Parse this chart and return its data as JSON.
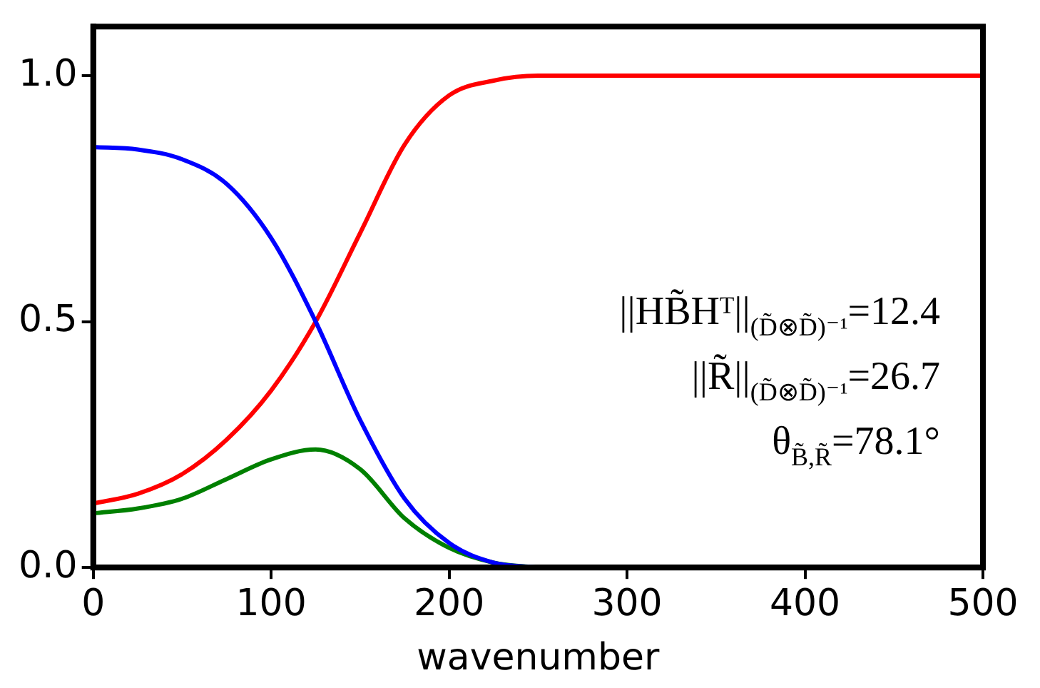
{
  "chart_data": {
    "type": "line",
    "xlabel": "wavenumber",
    "x": [
      0,
      25,
      50,
      75,
      100,
      125,
      150,
      175,
      200,
      225,
      250,
      300,
      400,
      500
    ],
    "series": [
      {
        "color": "#0000ff",
        "values": [
          0.855,
          0.85,
          0.83,
          0.78,
          0.67,
          0.5,
          0.3,
          0.14,
          0.05,
          0.01,
          0,
          null,
          null,
          null
        ]
      },
      {
        "color": "#ff0000",
        "values": [
          0.13,
          0.15,
          0.19,
          0.26,
          0.36,
          0.5,
          0.68,
          0.86,
          0.96,
          0.99,
          1.0,
          1.0,
          1.0,
          1.0
        ]
      },
      {
        "color": "#008000",
        "values": [
          0.11,
          0.12,
          0.14,
          0.18,
          0.22,
          0.24,
          0.2,
          0.1,
          0.04,
          0.01,
          0,
          null,
          null,
          null
        ]
      }
    ],
    "xlim": [
      0,
      500
    ],
    "xticks": [
      0,
      100,
      200,
      300,
      400,
      500
    ],
    "ylim": [
      0,
      1.1
    ],
    "yticks": [
      {
        "value": 0,
        "label": "0.0"
      },
      {
        "value": 0.5,
        "label": "0.5"
      },
      {
        "value": 1,
        "label": "1.0"
      }
    ],
    "annotations": [
      "||HB̃Hᵀ||$_{(D̃⊗D̃)⁻¹}$=12.4",
      "||R̃||$_{(D̃⊗D̃)⁻¹}$=26.7",
      "θ$_{B̃,R̃}$=78.1°"
    ],
    "grid": false,
    "legend": false,
    "marker": "none",
    "line_style": "solid"
  }
}
